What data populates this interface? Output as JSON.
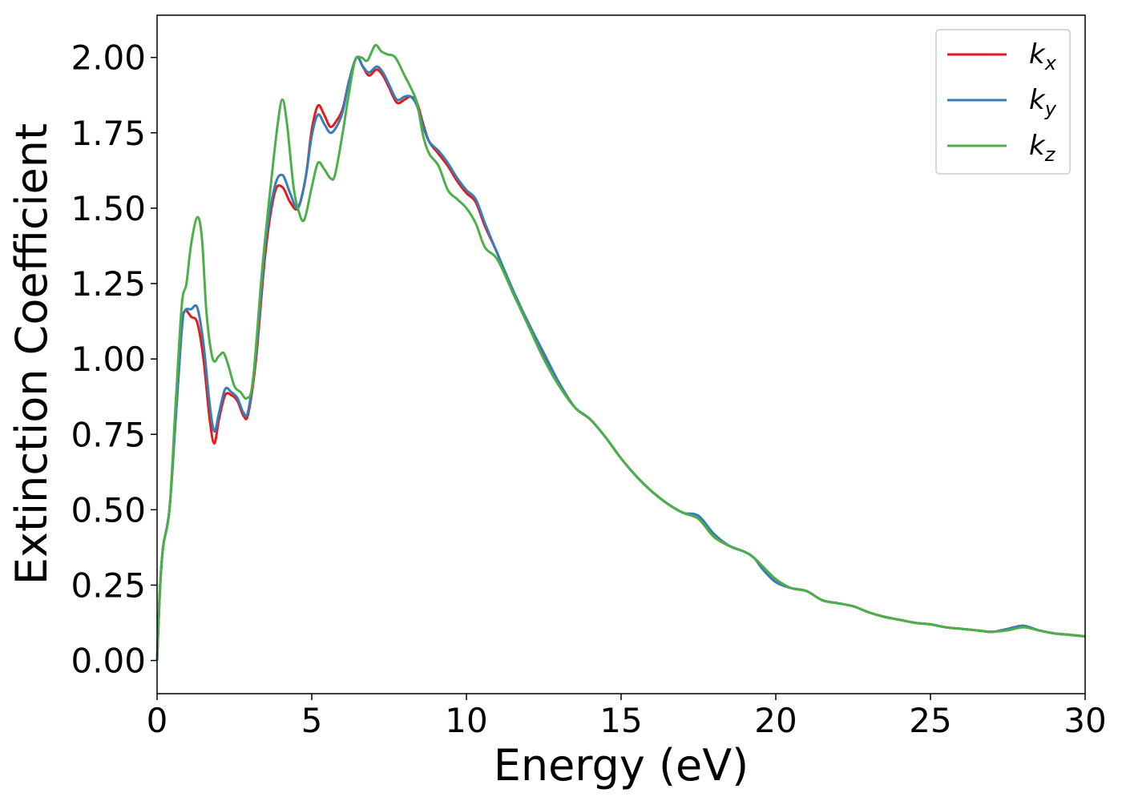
{
  "chart_data": {
    "type": "line",
    "xlabel": "Energy (eV)",
    "ylabel": "Extinction Coefficient",
    "xlim": [
      0,
      30
    ],
    "ylim": [
      -0.11,
      2.14
    ],
    "xticks": [
      0,
      5,
      10,
      15,
      20,
      25,
      30
    ],
    "xtick_labels": [
      "0",
      "5",
      "10",
      "15",
      "20",
      "25",
      "30"
    ],
    "yticks": [
      0.0,
      0.25,
      0.5,
      0.75,
      1.0,
      1.25,
      1.5,
      1.75,
      2.0
    ],
    "ytick_labels": [
      "0.00",
      "0.25",
      "0.50",
      "0.75",
      "1.00",
      "1.25",
      "1.50",
      "1.75",
      "2.00"
    ],
    "grid": false,
    "legend": {
      "position": "top-right"
    },
    "series": [
      {
        "name": "k",
        "subscript": "x",
        "color": "#e41a1c",
        "points": [
          [
            0,
            0
          ],
          [
            0.1,
            0.25
          ],
          [
            0.2,
            0.38
          ],
          [
            0.4,
            0.5
          ],
          [
            0.6,
            0.8
          ],
          [
            0.8,
            1.1
          ],
          [
            0.9,
            1.16
          ],
          [
            1.1,
            1.14
          ],
          [
            1.3,
            1.12
          ],
          [
            1.5,
            1.0
          ],
          [
            1.7,
            0.8
          ],
          [
            1.85,
            0.72
          ],
          [
            2.0,
            0.8
          ],
          [
            2.2,
            0.88
          ],
          [
            2.4,
            0.88
          ],
          [
            2.6,
            0.86
          ],
          [
            2.8,
            0.81
          ],
          [
            2.95,
            0.82
          ],
          [
            3.2,
            1.0
          ],
          [
            3.5,
            1.35
          ],
          [
            3.8,
            1.55
          ],
          [
            4.05,
            1.57
          ],
          [
            4.3,
            1.52
          ],
          [
            4.55,
            1.5
          ],
          [
            4.8,
            1.6
          ],
          [
            5.0,
            1.76
          ],
          [
            5.2,
            1.84
          ],
          [
            5.4,
            1.81
          ],
          [
            5.6,
            1.77
          ],
          [
            5.8,
            1.79
          ],
          [
            6.0,
            1.83
          ],
          [
            6.2,
            1.92
          ],
          [
            6.45,
            2.0
          ],
          [
            6.65,
            1.97
          ],
          [
            6.85,
            1.94
          ],
          [
            7.1,
            1.96
          ],
          [
            7.3,
            1.94
          ],
          [
            7.5,
            1.9
          ],
          [
            7.75,
            1.85
          ],
          [
            8.0,
            1.86
          ],
          [
            8.2,
            1.87
          ],
          [
            8.4,
            1.85
          ],
          [
            8.6,
            1.78
          ],
          [
            8.8,
            1.72
          ],
          [
            9.1,
            1.68
          ],
          [
            9.4,
            1.64
          ],
          [
            9.7,
            1.59
          ],
          [
            10.0,
            1.55
          ],
          [
            10.3,
            1.52
          ],
          [
            10.6,
            1.44
          ],
          [
            11.0,
            1.35
          ],
          [
            11.5,
            1.22
          ],
          [
            12.0,
            1.12
          ],
          [
            12.5,
            1.01
          ],
          [
            13.0,
            0.92
          ],
          [
            13.5,
            0.84
          ],
          [
            14.0,
            0.8
          ],
          [
            14.5,
            0.74
          ],
          [
            15.0,
            0.67
          ],
          [
            15.5,
            0.61
          ],
          [
            16.0,
            0.56
          ],
          [
            16.5,
            0.52
          ],
          [
            17.0,
            0.49
          ],
          [
            17.5,
            0.47
          ],
          [
            18.0,
            0.41
          ],
          [
            18.5,
            0.38
          ],
          [
            19.0,
            0.36
          ],
          [
            19.3,
            0.34
          ],
          [
            19.6,
            0.3
          ],
          [
            20.0,
            0.26
          ],
          [
            20.5,
            0.24
          ],
          [
            21.0,
            0.23
          ],
          [
            21.5,
            0.2
          ],
          [
            22.0,
            0.19
          ],
          [
            22.5,
            0.18
          ],
          [
            23.0,
            0.16
          ],
          [
            23.5,
            0.145
          ],
          [
            24.0,
            0.135
          ],
          [
            24.5,
            0.125
          ],
          [
            25.0,
            0.12
          ],
          [
            25.5,
            0.11
          ],
          [
            26.0,
            0.105
          ],
          [
            26.5,
            0.1
          ],
          [
            27.0,
            0.095
          ],
          [
            27.5,
            0.105
          ],
          [
            28.0,
            0.115
          ],
          [
            28.5,
            0.1
          ],
          [
            29.0,
            0.09
          ],
          [
            29.5,
            0.085
          ],
          [
            30.0,
            0.08
          ]
        ]
      },
      {
        "name": "k",
        "subscript": "y",
        "color": "#377eb8",
        "points": [
          [
            0,
            0
          ],
          [
            0.1,
            0.25
          ],
          [
            0.2,
            0.38
          ],
          [
            0.4,
            0.5
          ],
          [
            0.6,
            0.8
          ],
          [
            0.8,
            1.1
          ],
          [
            0.9,
            1.16
          ],
          [
            1.1,
            1.165
          ],
          [
            1.3,
            1.17
          ],
          [
            1.5,
            1.05
          ],
          [
            1.7,
            0.85
          ],
          [
            1.85,
            0.76
          ],
          [
            2.0,
            0.82
          ],
          [
            2.2,
            0.9
          ],
          [
            2.4,
            0.89
          ],
          [
            2.6,
            0.87
          ],
          [
            2.8,
            0.82
          ],
          [
            2.95,
            0.83
          ],
          [
            3.2,
            1.02
          ],
          [
            3.5,
            1.38
          ],
          [
            3.8,
            1.57
          ],
          [
            4.05,
            1.61
          ],
          [
            4.3,
            1.55
          ],
          [
            4.55,
            1.5
          ],
          [
            4.8,
            1.6
          ],
          [
            5.0,
            1.74
          ],
          [
            5.2,
            1.81
          ],
          [
            5.4,
            1.78
          ],
          [
            5.6,
            1.75
          ],
          [
            5.8,
            1.77
          ],
          [
            6.0,
            1.82
          ],
          [
            6.2,
            1.92
          ],
          [
            6.45,
            2.0
          ],
          [
            6.65,
            1.97
          ],
          [
            6.85,
            1.95
          ],
          [
            7.1,
            1.97
          ],
          [
            7.3,
            1.95
          ],
          [
            7.5,
            1.91
          ],
          [
            7.75,
            1.86
          ],
          [
            8.0,
            1.87
          ],
          [
            8.2,
            1.87
          ],
          [
            8.4,
            1.84
          ],
          [
            8.6,
            1.77
          ],
          [
            8.8,
            1.72
          ],
          [
            9.1,
            1.69
          ],
          [
            9.4,
            1.65
          ],
          [
            9.7,
            1.6
          ],
          [
            10.0,
            1.56
          ],
          [
            10.3,
            1.53
          ],
          [
            10.6,
            1.45
          ],
          [
            11.0,
            1.35
          ],
          [
            11.5,
            1.23
          ],
          [
            12.0,
            1.12
          ],
          [
            12.5,
            1.02
          ],
          [
            13.0,
            0.92
          ],
          [
            13.5,
            0.84
          ],
          [
            14.0,
            0.8
          ],
          [
            14.5,
            0.74
          ],
          [
            15.0,
            0.67
          ],
          [
            15.5,
            0.61
          ],
          [
            16.0,
            0.56
          ],
          [
            16.5,
            0.52
          ],
          [
            17.0,
            0.49
          ],
          [
            17.5,
            0.48
          ],
          [
            18.0,
            0.42
          ],
          [
            18.5,
            0.38
          ],
          [
            19.0,
            0.36
          ],
          [
            19.3,
            0.34
          ],
          [
            19.6,
            0.3
          ],
          [
            20.0,
            0.26
          ],
          [
            20.5,
            0.24
          ],
          [
            21.0,
            0.23
          ],
          [
            21.5,
            0.2
          ],
          [
            22.0,
            0.19
          ],
          [
            22.5,
            0.18
          ],
          [
            23.0,
            0.16
          ],
          [
            23.5,
            0.145
          ],
          [
            24.0,
            0.135
          ],
          [
            24.5,
            0.125
          ],
          [
            25.0,
            0.12
          ],
          [
            25.5,
            0.11
          ],
          [
            26.0,
            0.105
          ],
          [
            26.5,
            0.1
          ],
          [
            27.0,
            0.095
          ],
          [
            27.5,
            0.105
          ],
          [
            28.0,
            0.115
          ],
          [
            28.5,
            0.1
          ],
          [
            29.0,
            0.09
          ],
          [
            29.5,
            0.085
          ],
          [
            30.0,
            0.08
          ]
        ]
      },
      {
        "name": "k",
        "subscript": "z",
        "color": "#4daf4a",
        "points": [
          [
            0,
            0
          ],
          [
            0.1,
            0.25
          ],
          [
            0.2,
            0.38
          ],
          [
            0.4,
            0.5
          ],
          [
            0.6,
            0.85
          ],
          [
            0.8,
            1.18
          ],
          [
            0.95,
            1.25
          ],
          [
            1.1,
            1.38
          ],
          [
            1.3,
            1.47
          ],
          [
            1.45,
            1.4
          ],
          [
            1.6,
            1.15
          ],
          [
            1.8,
            1.0
          ],
          [
            2.0,
            1.01
          ],
          [
            2.15,
            1.02
          ],
          [
            2.3,
            0.98
          ],
          [
            2.5,
            0.91
          ],
          [
            2.7,
            0.89
          ],
          [
            2.9,
            0.87
          ],
          [
            3.1,
            0.93
          ],
          [
            3.4,
            1.3
          ],
          [
            3.7,
            1.6
          ],
          [
            3.9,
            1.78
          ],
          [
            4.05,
            1.86
          ],
          [
            4.2,
            1.78
          ],
          [
            4.4,
            1.58
          ],
          [
            4.55,
            1.5
          ],
          [
            4.75,
            1.46
          ],
          [
            5.0,
            1.57
          ],
          [
            5.2,
            1.65
          ],
          [
            5.4,
            1.63
          ],
          [
            5.6,
            1.6
          ],
          [
            5.75,
            1.61
          ],
          [
            6.0,
            1.75
          ],
          [
            6.2,
            1.88
          ],
          [
            6.4,
            1.99
          ],
          [
            6.6,
            2.0
          ],
          [
            6.8,
            1.99
          ],
          [
            7.05,
            2.04
          ],
          [
            7.25,
            2.02
          ],
          [
            7.45,
            2.01
          ],
          [
            7.7,
            2.0
          ],
          [
            8.0,
            1.94
          ],
          [
            8.2,
            1.9
          ],
          [
            8.4,
            1.85
          ],
          [
            8.6,
            1.74
          ],
          [
            8.8,
            1.68
          ],
          [
            9.1,
            1.64
          ],
          [
            9.4,
            1.56
          ],
          [
            9.7,
            1.53
          ],
          [
            10.0,
            1.5
          ],
          [
            10.3,
            1.45
          ],
          [
            10.6,
            1.37
          ],
          [
            11.0,
            1.33
          ],
          [
            11.5,
            1.22
          ],
          [
            12.0,
            1.11
          ],
          [
            12.5,
            1.0
          ],
          [
            13.0,
            0.91
          ],
          [
            13.5,
            0.84
          ],
          [
            14.0,
            0.8
          ],
          [
            14.5,
            0.74
          ],
          [
            15.0,
            0.67
          ],
          [
            15.5,
            0.61
          ],
          [
            16.0,
            0.56
          ],
          [
            16.5,
            0.52
          ],
          [
            17.0,
            0.49
          ],
          [
            17.5,
            0.47
          ],
          [
            18.0,
            0.41
          ],
          [
            18.5,
            0.38
          ],
          [
            19.0,
            0.36
          ],
          [
            19.3,
            0.34
          ],
          [
            19.6,
            0.31
          ],
          [
            20.0,
            0.27
          ],
          [
            20.5,
            0.24
          ],
          [
            21.0,
            0.23
          ],
          [
            21.5,
            0.2
          ],
          [
            22.0,
            0.19
          ],
          [
            22.5,
            0.18
          ],
          [
            23.0,
            0.16
          ],
          [
            23.5,
            0.145
          ],
          [
            24.0,
            0.135
          ],
          [
            24.5,
            0.125
          ],
          [
            25.0,
            0.12
          ],
          [
            25.5,
            0.11
          ],
          [
            26.0,
            0.105
          ],
          [
            26.5,
            0.1
          ],
          [
            27.0,
            0.095
          ],
          [
            27.5,
            0.1
          ],
          [
            28.0,
            0.11
          ],
          [
            28.5,
            0.1
          ],
          [
            29.0,
            0.09
          ],
          [
            29.5,
            0.085
          ],
          [
            30.0,
            0.08
          ]
        ]
      }
    ]
  }
}
